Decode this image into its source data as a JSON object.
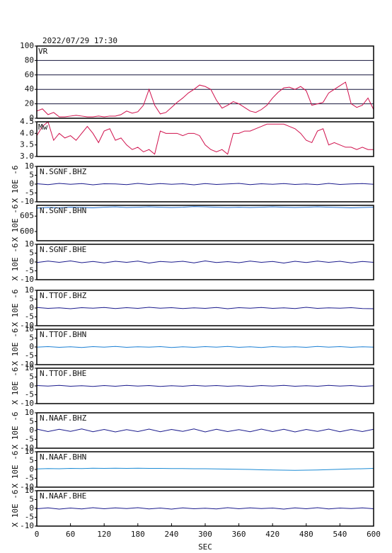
{
  "chart_data": [
    {
      "type": "line",
      "title": "2022/07/29 17:30",
      "label": "VR",
      "grid": true,
      "xlim": [
        0,
        600
      ],
      "ylim": [
        0,
        100
      ],
      "yticks": [
        0,
        20,
        40,
        60,
        80,
        100
      ],
      "x": [
        0,
        10,
        20,
        30,
        40,
        50,
        60,
        70,
        80,
        90,
        100,
        110,
        120,
        130,
        140,
        150,
        160,
        170,
        180,
        190,
        200,
        210,
        220,
        230,
        240,
        250,
        260,
        270,
        280,
        290,
        300,
        310,
        320,
        330,
        340,
        350,
        360,
        370,
        380,
        390,
        400,
        410,
        420,
        430,
        440,
        450,
        460,
        470,
        480,
        490,
        500,
        510,
        520,
        530,
        540,
        550,
        560,
        570,
        580,
        590,
        600
      ],
      "series": [
        {
          "color": "#d0104c",
          "values": [
            10,
            13,
            5,
            8,
            2,
            2,
            3,
            4,
            3,
            2,
            2,
            3,
            2,
            3,
            3,
            5,
            10,
            7,
            9,
            18,
            40,
            18,
            6,
            8,
            15,
            22,
            28,
            35,
            40,
            46,
            44,
            40,
            25,
            14,
            18,
            23,
            20,
            15,
            10,
            8,
            12,
            18,
            28,
            36,
            42,
            43,
            40,
            44,
            38,
            18,
            20,
            22,
            35,
            40,
            45,
            50,
            20,
            15,
            18,
            28,
            12
          ]
        }
      ]
    },
    {
      "type": "line",
      "label": "Mw",
      "xlim": [
        0,
        600
      ],
      "ylim": [
        3,
        4.5
      ],
      "yticks": [
        {
          "value": 3,
          "label": "3.0"
        },
        3.5,
        {
          "value": 4,
          "label": "4.0"
        },
        4.5
      ],
      "x": [
        0,
        10,
        20,
        30,
        40,
        50,
        60,
        70,
        80,
        90,
        100,
        110,
        120,
        130,
        140,
        150,
        160,
        170,
        180,
        190,
        200,
        210,
        220,
        230,
        240,
        250,
        260,
        270,
        280,
        290,
        300,
        310,
        320,
        330,
        340,
        350,
        360,
        370,
        380,
        390,
        400,
        410,
        420,
        430,
        440,
        450,
        460,
        470,
        480,
        490,
        500,
        510,
        520,
        530,
        540,
        550,
        560,
        570,
        580,
        590,
        600
      ],
      "series": [
        {
          "color": "#d0104c",
          "values": [
            3.9,
            4.3,
            4.5,
            3.7,
            4.0,
            3.8,
            3.9,
            3.7,
            4.0,
            4.3,
            4.0,
            3.6,
            4.1,
            4.2,
            3.7,
            3.8,
            3.5,
            3.3,
            3.4,
            3.2,
            3.3,
            3.1,
            4.1,
            4.0,
            4.0,
            4.0,
            3.9,
            4.0,
            4.0,
            3.9,
            3.5,
            3.3,
            3.2,
            3.3,
            3.1,
            4.0,
            4.0,
            4.1,
            4.1,
            4.2,
            4.3,
            4.4,
            4.4,
            4.4,
            4.4,
            4.3,
            4.2,
            4.0,
            3.7,
            3.6,
            4.1,
            4.2,
            3.5,
            3.6,
            3.5,
            3.4,
            3.4,
            3.3,
            3.4,
            3.3,
            3.3
          ]
        }
      ]
    },
    {
      "type": "line",
      "ylabel": "X 10E -6",
      "xlim": [
        0,
        600
      ],
      "ylim": [
        -10,
        10
      ],
      "yticks": [
        -10,
        -5,
        0,
        5,
        10
      ],
      "x": [
        0,
        20,
        40,
        60,
        80,
        100,
        120,
        140,
        160,
        180,
        200,
        220,
        240,
        260,
        280,
        300,
        320,
        340,
        360,
        380,
        400,
        420,
        440,
        460,
        480,
        500,
        520,
        540,
        560,
        580,
        600
      ],
      "series": [
        {
          "name": "N.SGNF.BHZ",
          "color": "#1a1a8c",
          "values": [
            0.2,
            -0.3,
            0.4,
            -0.1,
            0.3,
            -0.4,
            0.2,
            0.1,
            -0.3,
            0.4,
            -0.2,
            0.3,
            -0.1,
            0.2,
            -0.4,
            0.3,
            -0.2,
            0.1,
            0.4,
            -0.3,
            0.2,
            -0.1,
            0.3,
            -0.2,
            0.1,
            -0.3,
            0.4,
            -0.2,
            0.1,
            0.3,
            -0.1
          ]
        }
      ]
    },
    {
      "type": "line",
      "ylabel": "X 10E -6",
      "xlim": [
        0,
        600
      ],
      "ylim": [
        597,
        608.5
      ],
      "yticks": [
        600,
        605
      ],
      "x": [
        0,
        20,
        40,
        60,
        80,
        100,
        120,
        140,
        160,
        180,
        200,
        220,
        240,
        260,
        280,
        300,
        320,
        340,
        360,
        380,
        400,
        420,
        440,
        460,
        480,
        500,
        520,
        540,
        560,
        580,
        600
      ],
      "series": [
        {
          "name": "N.SGNF.BHN",
          "color": "#1f6fd0",
          "values": [
            607.6,
            607.8,
            607.7,
            607.9,
            607.8,
            607.7,
            607.9,
            608.0,
            607.8,
            607.9,
            608.0,
            607.9,
            607.8,
            607.9,
            608.1,
            608.0,
            607.9,
            607.8,
            607.9,
            607.8,
            607.9,
            608.0,
            607.9,
            607.8,
            607.9,
            608.0,
            607.9,
            607.8,
            607.7,
            607.8,
            607.9
          ]
        }
      ]
    },
    {
      "type": "line",
      "ylabel": "X 10E -6",
      "xlim": [
        0,
        600
      ],
      "ylim": [
        -10,
        10
      ],
      "yticks": [
        -10,
        -5,
        0,
        5,
        10
      ],
      "x": [
        0,
        20,
        40,
        60,
        80,
        100,
        120,
        140,
        160,
        180,
        200,
        220,
        240,
        260,
        280,
        300,
        320,
        340,
        360,
        380,
        400,
        420,
        440,
        460,
        480,
        500,
        520,
        540,
        560,
        580,
        600
      ],
      "series": [
        {
          "name": "N.SGNF.BHE",
          "color": "#1a1a8c",
          "values": [
            -0.3,
            0.5,
            -0.2,
            0.6,
            -0.4,
            0.3,
            -0.5,
            0.4,
            -0.2,
            0.5,
            -0.6,
            0.3,
            -0.1,
            0.4,
            -0.5,
            0.6,
            -0.3,
            0.2,
            -0.4,
            0.5,
            -0.2,
            0.3,
            -0.6,
            0.4,
            -0.3,
            0.5,
            -0.2,
            0.4,
            -0.5,
            0.3,
            -0.2
          ]
        }
      ]
    },
    {
      "type": "line",
      "ylabel": "X 10E -6",
      "xlim": [
        0,
        600
      ],
      "ylim": [
        -10,
        10
      ],
      "yticks": [
        -10,
        -5,
        0,
        5,
        10
      ],
      "x": [
        0,
        20,
        40,
        60,
        80,
        100,
        120,
        140,
        160,
        180,
        200,
        220,
        240,
        260,
        280,
        300,
        320,
        340,
        360,
        380,
        400,
        420,
        440,
        460,
        480,
        500,
        520,
        540,
        560,
        580,
        600
      ],
      "series": [
        {
          "name": "N.TTOF.BHZ",
          "color": "#1a1a8c",
          "values": [
            0.3,
            -0.2,
            0.1,
            -0.4,
            0.2,
            -0.1,
            0.3,
            -0.3,
            0.2,
            -0.2,
            0.4,
            -0.1,
            0.2,
            -0.3,
            0.1,
            -0.2,
            0.3,
            -0.4,
            0.2,
            -0.1,
            0.3,
            -0.2,
            0.1,
            -0.3,
            0.4,
            -0.2,
            0.1,
            -0.1,
            0.2,
            -0.3,
            -0.4
          ]
        }
      ]
    },
    {
      "type": "line",
      "ylabel": "X 10E -6",
      "xlim": [
        0,
        600
      ],
      "ylim": [
        -10,
        10
      ],
      "yticks": [
        -10,
        -5,
        0,
        5,
        10
      ],
      "x": [
        0,
        20,
        40,
        60,
        80,
        100,
        120,
        140,
        160,
        180,
        200,
        220,
        240,
        260,
        280,
        300,
        320,
        340,
        360,
        380,
        400,
        420,
        440,
        460,
        480,
        500,
        520,
        540,
        560,
        580,
        600
      ],
      "series": [
        {
          "name": "N.TTOF.BHN",
          "color": "#1a7fd4",
          "values": [
            -0.1,
            0.2,
            -0.2,
            0.1,
            -0.3,
            0.2,
            -0.1,
            0.3,
            -0.2,
            0.1,
            -0.1,
            0.2,
            -0.3,
            0.1,
            -0.2,
            0.2,
            -0.1,
            0.3,
            -0.2,
            0.1,
            -0.3,
            0.2,
            -0.1,
            0.1,
            -0.2,
            0.3,
            -0.1,
            0.2,
            -0.2,
            0.1,
            -0.1
          ]
        }
      ]
    },
    {
      "type": "line",
      "ylabel": "X 10E -6",
      "xlim": [
        0,
        600
      ],
      "ylim": [
        -10,
        10
      ],
      "yticks": [
        -10,
        -5,
        0,
        5,
        10
      ],
      "x": [
        0,
        20,
        40,
        60,
        80,
        100,
        120,
        140,
        160,
        180,
        200,
        220,
        240,
        260,
        280,
        300,
        320,
        340,
        360,
        380,
        400,
        420,
        440,
        460,
        480,
        500,
        520,
        540,
        560,
        580,
        600
      ],
      "series": [
        {
          "name": "N.TTOF.BHE",
          "color": "#1a1a8c",
          "values": [
            0.2,
            -0.1,
            0.3,
            -0.2,
            0.1,
            -0.3,
            0.2,
            -0.2,
            0.3,
            -0.1,
            0.2,
            -0.3,
            0.1,
            -0.2,
            0.3,
            -0.1,
            0.2,
            -0.2,
            0.1,
            -0.3,
            0.2,
            -0.1,
            0.3,
            -0.2,
            0.1,
            -0.2,
            0.3,
            -0.1,
            0.2,
            -0.3,
            0.1
          ]
        }
      ]
    },
    {
      "type": "line",
      "ylabel": "X 10E -6",
      "xlim": [
        0,
        600
      ],
      "ylim": [
        -10,
        10
      ],
      "yticks": [
        -10,
        -5,
        0,
        5,
        10
      ],
      "x": [
        0,
        20,
        40,
        60,
        80,
        100,
        120,
        140,
        160,
        180,
        200,
        220,
        240,
        260,
        280,
        300,
        320,
        340,
        360,
        380,
        400,
        420,
        440,
        460,
        480,
        500,
        520,
        540,
        560,
        580,
        600
      ],
      "series": [
        {
          "name": "N.NAAF.BHZ",
          "color": "#1a1a8c",
          "values": [
            0.8,
            -0.6,
            0.7,
            -0.5,
            0.9,
            -0.7,
            0.6,
            -0.8,
            0.5,
            -0.6,
            0.8,
            -0.7,
            0.6,
            -0.5,
            0.9,
            -0.8,
            0.7,
            -0.6,
            0.5,
            -0.7,
            0.8,
            -0.6,
            0.7,
            -0.8,
            0.6,
            -0.5,
            0.8,
            -0.7,
            0.6,
            -0.6,
            0.7
          ]
        }
      ]
    },
    {
      "type": "line",
      "ylabel": "X 10E -6",
      "xlim": [
        0,
        600
      ],
      "ylim": [
        -10,
        10
      ],
      "yticks": [
        -10,
        -5,
        0,
        5,
        10
      ],
      "x": [
        0,
        20,
        40,
        60,
        80,
        100,
        120,
        140,
        160,
        180,
        200,
        220,
        240,
        260,
        280,
        300,
        320,
        340,
        360,
        380,
        400,
        420,
        440,
        460,
        480,
        500,
        520,
        540,
        560,
        580,
        600
      ],
      "series": [
        {
          "name": "N.NAAF.BHN",
          "color": "#1a8ad4",
          "values": [
            0.3,
            0.5,
            0.4,
            0.6,
            0.5,
            0.7,
            0.6,
            0.7,
            0.6,
            0.7,
            0.6,
            0.6,
            0.5,
            0.5,
            0.4,
            0.4,
            0.3,
            0.2,
            0.1,
            0.0,
            -0.2,
            -0.3,
            -0.4,
            -0.5,
            -0.4,
            -0.3,
            -0.1,
            0.1,
            0.3,
            0.4,
            0.6
          ]
        }
      ]
    },
    {
      "type": "line",
      "ylabel": "X 10E -6",
      "xlabel": "SEC",
      "xlim": [
        0,
        600
      ],
      "ylim": [
        -10,
        10
      ],
      "yticks": [
        -10,
        -5,
        0,
        5,
        10
      ],
      "xticks": [
        0,
        60,
        120,
        180,
        240,
        300,
        360,
        420,
        480,
        540,
        600
      ],
      "x": [
        0,
        20,
        40,
        60,
        80,
        100,
        120,
        140,
        160,
        180,
        200,
        220,
        240,
        260,
        280,
        300,
        320,
        340,
        360,
        380,
        400,
        420,
        440,
        460,
        480,
        500,
        520,
        540,
        560,
        580,
        600
      ],
      "series": [
        {
          "name": "N.NAAF.BHE",
          "color": "#1a1a8c",
          "values": [
            -0.2,
            0.3,
            -0.4,
            0.2,
            -0.3,
            0.4,
            -0.2,
            0.3,
            -0.1,
            0.4,
            -0.3,
            0.2,
            -0.4,
            0.3,
            -0.2,
            0.1,
            -0.3,
            0.4,
            -0.2,
            0.3,
            -0.1,
            0.2,
            -0.4,
            0.3,
            -0.2,
            0.4,
            -0.3,
            0.2,
            -0.1,
            0.3,
            -0.2
          ]
        }
      ]
    }
  ]
}
